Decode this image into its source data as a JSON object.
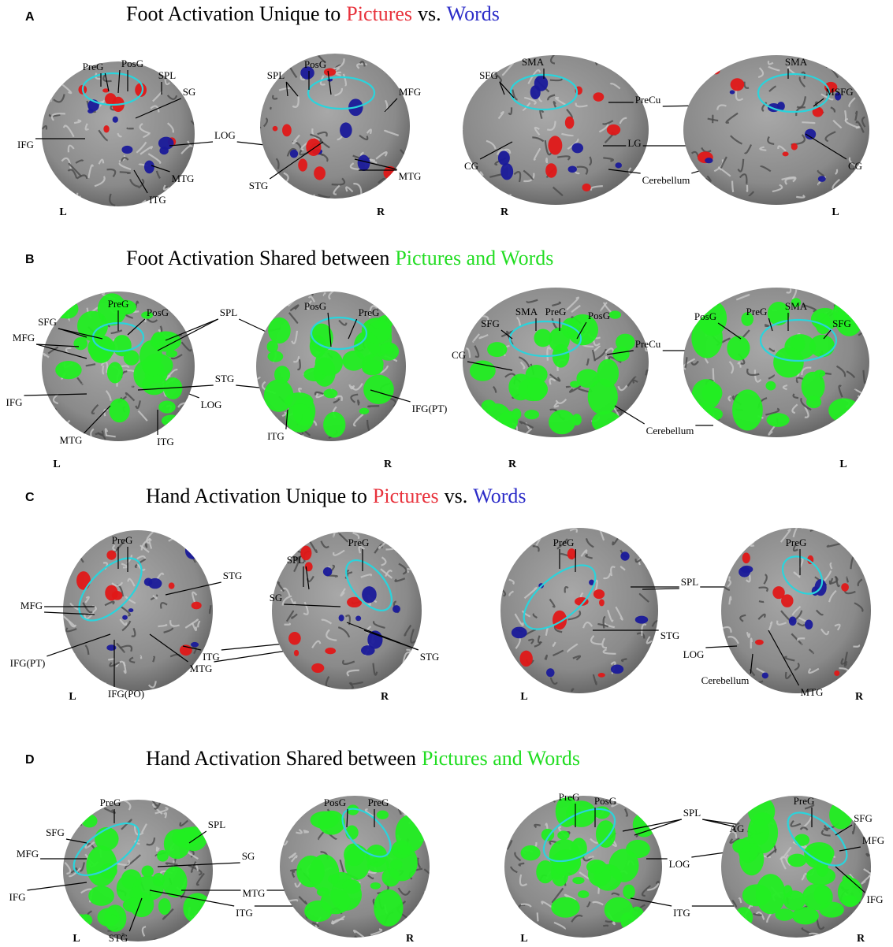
{
  "panels": [
    {
      "letter": "A",
      "title": [
        {
          "text": "Foot Activation Unique to",
          "color": "#000000"
        },
        {
          "text": "Pictures",
          "color": "#e8323c"
        },
        {
          "text": "vs.",
          "color": "#000000"
        },
        {
          "text": "Words",
          "color": "#2c2cc8"
        }
      ],
      "blob_colors": [
        "#e01818",
        "#1a1a9a"
      ],
      "images": [
        {
          "side": "L",
          "labels": [
            "PreG",
            "PosG",
            "SPL",
            "SG",
            "IFG",
            "LOG",
            "MTG",
            "ITG"
          ]
        },
        {
          "side": "R",
          "labels": [
            "SPL",
            "PosG",
            "MFG",
            "STG",
            "MTG"
          ]
        },
        {
          "side": "R",
          "labels": [
            "SFG",
            "SMA",
            "CG",
            "PreCu",
            "LG",
            "Cerebellum"
          ]
        },
        {
          "side": "L",
          "labels": [
            "SMA",
            "MSFG",
            "CG"
          ]
        }
      ]
    },
    {
      "letter": "B",
      "title": [
        {
          "text": "Foot Activation Shared between",
          "color": "#000000"
        },
        {
          "text": "Pictures and Words",
          "color": "#22dd22"
        }
      ],
      "blob_colors": [
        "#22ee22"
      ],
      "images": [
        {
          "side": "L",
          "labels": [
            "SFG",
            "PreG",
            "PosG",
            "SPL",
            "MFG",
            "STG",
            "IFG",
            "LOG",
            "MTG",
            "ITG"
          ]
        },
        {
          "side": "R",
          "labels": [
            "PosG",
            "PreG",
            "IFG(PT)",
            "ITG"
          ]
        },
        {
          "side": "R",
          "labels": [
            "SMA",
            "PreG",
            "PosG",
            "SFG",
            "CG",
            "PreCu",
            "Cerebellum"
          ]
        },
        {
          "side": "L",
          "labels": [
            "PosG",
            "PreG",
            "SMA",
            "SFG"
          ]
        }
      ]
    },
    {
      "letter": "C",
      "title": [
        {
          "text": "Hand Activation Unique to",
          "color": "#000000"
        },
        {
          "text": "Pictures",
          "color": "#e8323c"
        },
        {
          "text": "vs.",
          "color": "#000000"
        },
        {
          "text": "Words",
          "color": "#2c2cc8"
        }
      ],
      "blob_colors": [
        "#e01818",
        "#1a1a9a"
      ],
      "images": [
        {
          "side": "L",
          "labels": [
            "PreG",
            "MFG",
            "STG",
            "ITG",
            "IFG(PT)",
            "IFG(PO)",
            "MTG"
          ]
        },
        {
          "side": "R",
          "labels": [
            "SPL",
            "PreG",
            "SG",
            "STG"
          ]
        },
        {
          "side": "L",
          "labels": [
            "PreG",
            "SPL",
            "STG"
          ]
        },
        {
          "side": "R",
          "labels": [
            "PreG",
            "LOG",
            "Cerebellum",
            "MTG"
          ]
        }
      ]
    },
    {
      "letter": "D",
      "title": [
        {
          "text": "Hand Activation Shared between",
          "color": "#000000"
        },
        {
          "text": "Pictures and Words",
          "color": "#22dd22"
        }
      ],
      "blob_colors": [
        "#22ee22"
      ],
      "images": [
        {
          "side": "L",
          "labels": [
            "PreG",
            "SFG",
            "SPL",
            "MFG",
            "SG",
            "IFG",
            "MTG",
            "ITG",
            "STG"
          ]
        },
        {
          "side": "R",
          "labels": [
            "PosG",
            "PreG"
          ]
        },
        {
          "side": "L",
          "labels": [
            "PreG",
            "PosG",
            "SPL",
            "LOG",
            "ITG"
          ]
        },
        {
          "side": "R",
          "labels": [
            "PreG",
            "SFG",
            "AG",
            "MFG",
            "IFG"
          ]
        }
      ]
    }
  ]
}
